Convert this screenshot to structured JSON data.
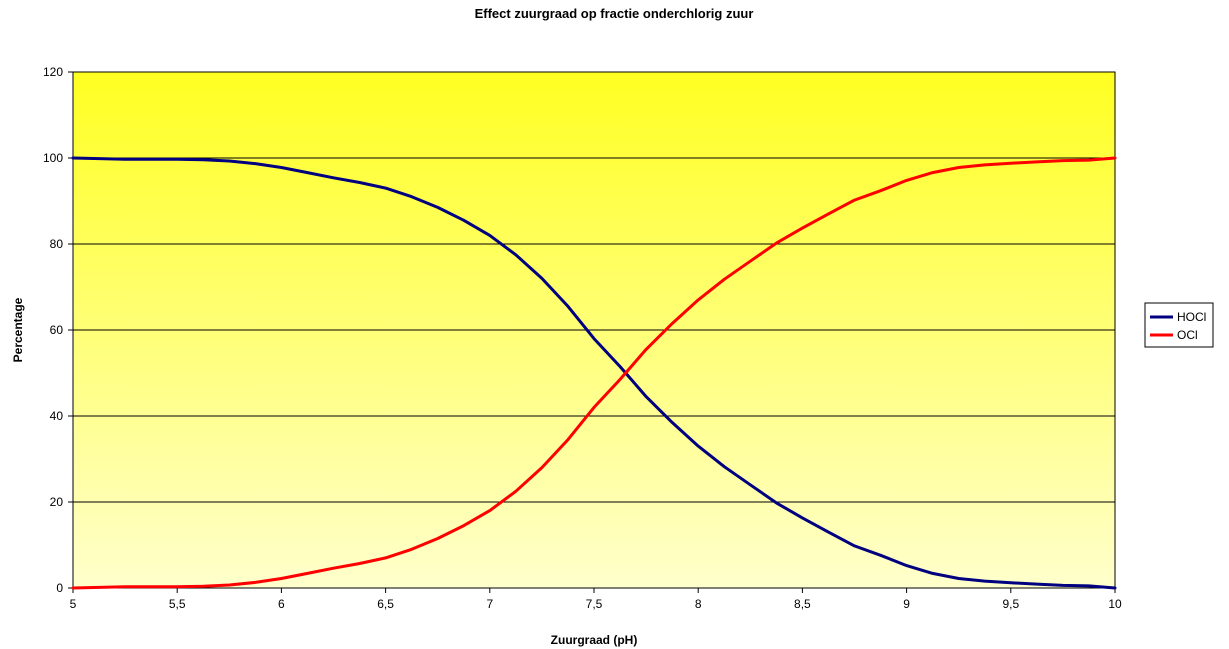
{
  "chart_data": {
    "type": "line",
    "title": "Effect zuurgraad op fractie onderchlorig zuur",
    "xlabel": "Zuurgraad (pH)",
    "ylabel": "Percentage",
    "xlim": [
      5,
      10
    ],
    "ylim": [
      0,
      120
    ],
    "x_ticks": [
      5,
      5.5,
      6,
      6.5,
      7,
      7.5,
      8,
      8.5,
      9,
      9.5,
      10
    ],
    "x_tick_labels": [
      "5",
      "5,5",
      "6",
      "6,5",
      "7",
      "7,5",
      "8",
      "8,5",
      "9",
      "9,5",
      "10"
    ],
    "y_ticks": [
      0,
      20,
      40,
      60,
      80,
      100,
      120
    ],
    "y_tick_labels": [
      "0",
      "20",
      "40",
      "60",
      "80",
      "100",
      "120"
    ],
    "grid": "horizontal",
    "legend_position": "right",
    "background_gradient": [
      "#ffff22",
      "#ffffcc"
    ],
    "series": [
      {
        "name": "HOCl",
        "color": "#000080",
        "x": [
          5,
          5.25,
          5.5,
          5.625,
          5.75,
          5.875,
          6,
          6.125,
          6.25,
          6.375,
          6.5,
          6.625,
          6.75,
          6.875,
          7,
          7.125,
          7.25,
          7.375,
          7.5,
          7.625,
          7.75,
          7.875,
          8,
          8.125,
          8.25,
          8.375,
          8.5,
          8.625,
          8.75,
          8.875,
          9,
          9.125,
          9.25,
          9.375,
          9.5,
          9.625,
          9.75,
          9.875,
          10
        ],
        "y": [
          100,
          99.7,
          99.7,
          99.6,
          99.3,
          98.7,
          97.8,
          96.6,
          95.4,
          94.3,
          93.0,
          91.0,
          88.5,
          85.5,
          82.0,
          77.5,
          72.0,
          65.5,
          58.0,
          51.5,
          44.5,
          38.5,
          33.0,
          28.2,
          24.0,
          19.8,
          16.3,
          13.0,
          9.8,
          7.6,
          5.2,
          3.4,
          2.2,
          1.6,
          1.2,
          0.9,
          0.6,
          0.5,
          0
        ]
      },
      {
        "name": "OCl",
        "color": "#ff0000",
        "x": [
          5,
          5.25,
          5.5,
          5.625,
          5.75,
          5.875,
          6,
          6.125,
          6.25,
          6.375,
          6.5,
          6.625,
          6.75,
          6.875,
          7,
          7.125,
          7.25,
          7.375,
          7.5,
          7.625,
          7.75,
          7.875,
          8,
          8.125,
          8.25,
          8.375,
          8.5,
          8.625,
          8.75,
          8.875,
          9,
          9.125,
          9.25,
          9.375,
          9.5,
          9.625,
          9.75,
          9.875,
          10
        ],
        "y": [
          0,
          0.3,
          0.3,
          0.4,
          0.7,
          1.3,
          2.2,
          3.4,
          4.6,
          5.7,
          7.0,
          9.0,
          11.5,
          14.5,
          18.0,
          22.5,
          28.0,
          34.5,
          42.0,
          48.5,
          55.5,
          61.5,
          67.0,
          71.8,
          76.0,
          80.2,
          83.7,
          87.0,
          90.2,
          92.4,
          94.8,
          96.6,
          97.8,
          98.4,
          98.8,
          99.1,
          99.4,
          99.5,
          100
        ]
      }
    ]
  }
}
